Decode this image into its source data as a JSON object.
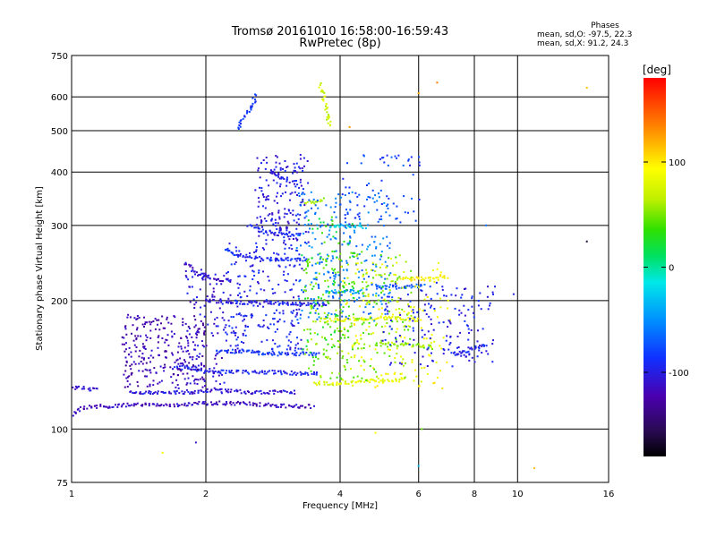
{
  "title": {
    "line1": "Tromsø 20161010 16:58:00-16:59:43",
    "line2": "RwPretec (8p)"
  },
  "phases": {
    "heading": "Phases",
    "o_line": "mean, sd,O: -97.5, 22.3",
    "x_line": "mean, sd,X:  91.2, 24.3"
  },
  "colorbar": {
    "unit": "[deg]",
    "range": [
      -180,
      180
    ],
    "ticks": [
      {
        "value": 100,
        "label": "100"
      },
      {
        "value": 0,
        "label": "0"
      },
      {
        "value": -100,
        "label": "-100"
      }
    ]
  },
  "chart_data": {
    "type": "scatter",
    "title": "Tromsø 20161010 16:58:00-16:59:43",
    "subtitle": "RwPretec (8p)",
    "xlabel": "Frequency [MHz]",
    "ylabel": "Stationary phase Virtual Height [km]",
    "xscale": "log",
    "yscale": "log",
    "xlim": [
      1,
      16
    ],
    "ylim": [
      75,
      750
    ],
    "xticks": [
      1,
      2,
      4,
      6,
      8,
      10,
      16
    ],
    "yticks": [
      75,
      100,
      200,
      300,
      400,
      500,
      600,
      750
    ],
    "grid": true,
    "color_by": "phase [deg]",
    "traces": [
      {
        "phase": -115,
        "spread": 2,
        "x": [
          1.0,
          1.05,
          1.1,
          1.2,
          1.4,
          1.7,
          2.0,
          2.3,
          2.7,
          3.1,
          3.5
        ],
        "y": [
          108,
          112,
          113,
          113,
          114,
          114,
          115,
          115,
          114,
          113,
          113
        ]
      },
      {
        "phase": -110,
        "spread": 2,
        "x": [
          1.0,
          1.05,
          1.1,
          1.15
        ],
        "y": [
          125,
          125,
          124,
          124
        ]
      },
      {
        "phase": -105,
        "spread": 2,
        "x": [
          1.35,
          1.6,
          1.9,
          2.2,
          2.5,
          2.9,
          3.2
        ],
        "y": [
          122,
          122,
          122,
          123,
          122,
          122,
          122
        ]
      },
      {
        "phase": -95,
        "spread": 2,
        "x": [
          1.7,
          1.9,
          2.1,
          2.4,
          2.8,
          3.2,
          3.6
        ],
        "y": [
          140,
          138,
          136,
          136,
          136,
          135,
          135
        ]
      },
      {
        "phase": -100,
        "spread": 2,
        "x": [
          2.0,
          2.2,
          2.6,
          3.0,
          3.4,
          3.8
        ],
        "y": [
          200,
          198,
          198,
          197,
          196,
          196
        ]
      },
      {
        "phase": -85,
        "spread": 2,
        "x": [
          2.1,
          2.4,
          2.8,
          3.2,
          3.6
        ],
        "y": [
          152,
          152,
          150,
          150,
          150
        ]
      },
      {
        "phase": -90,
        "spread": 2,
        "x": [
          2.2,
          2.4,
          2.7,
          3.0,
          3.4
        ],
        "y": [
          262,
          255,
          250,
          250,
          250
        ]
      },
      {
        "phase": -95,
        "spread": 2,
        "x": [
          2.5,
          2.7,
          3.0,
          3.3
        ],
        "y": [
          300,
          290,
          285,
          285
        ]
      },
      {
        "phase": -100,
        "spread": 2,
        "x": [
          2.8,
          3.0,
          3.2
        ],
        "y": [
          400,
          385,
          375
        ]
      },
      {
        "phase": -85,
        "spread": 2,
        "x": [
          2.35,
          2.45,
          2.55,
          2.6
        ],
        "y": [
          505,
          540,
          580,
          610
        ]
      },
      {
        "phase": 80,
        "spread": 2,
        "x": [
          3.5,
          3.9,
          4.4,
          5.0,
          5.6
        ],
        "y": [
          128,
          128,
          129,
          130,
          131
        ]
      },
      {
        "phase": 85,
        "spread": 2,
        "x": [
          3.6,
          4.0,
          4.6,
          5.2,
          6.0
        ],
        "y": [
          180,
          180,
          182,
          182,
          180
        ]
      },
      {
        "phase": 95,
        "spread": 2,
        "x": [
          5.5,
          6.0,
          6.5,
          7.0
        ],
        "y": [
          225,
          225,
          225,
          228
        ]
      },
      {
        "phase": -40,
        "spread": 2,
        "x": [
          3.7,
          4.1,
          4.5
        ],
        "y": [
          210,
          210,
          210
        ]
      },
      {
        "phase": 70,
        "spread": 2,
        "x": [
          3.6,
          3.7,
          3.8
        ],
        "y": [
          640,
          580,
          510
        ]
      },
      {
        "phase": -20,
        "spread": 2,
        "x": [
          3.8,
          4.2,
          4.6
        ],
        "y": [
          298,
          298,
          298
        ]
      },
      {
        "phase": 60,
        "spread": 2,
        "x": [
          3.3,
          3.5,
          3.7
        ],
        "y": [
          340,
          340,
          345
        ]
      },
      {
        "phase": 50,
        "spread": 2,
        "x": [
          4.8,
          5.4,
          6.0,
          6.5
        ],
        "y": [
          158,
          158,
          157,
          155
        ]
      },
      {
        "phase": -110,
        "spread": 2,
        "x": [
          1.8,
          1.9,
          2.1,
          2.3
        ],
        "y": [
          245,
          232,
          225,
          222
        ]
      },
      {
        "phase": -70,
        "spread": 2,
        "x": [
          4.8,
          5.5,
          6.2
        ],
        "y": [
          215,
          215,
          217
        ]
      },
      {
        "phase": -95,
        "spread": 2,
        "x": [
          7.2,
          7.6,
          8.0,
          8.5
        ],
        "y": [
          150,
          152,
          155,
          158
        ]
      }
    ],
    "clusters": [
      {
        "phase": -120,
        "spread": 2,
        "xr": [
          1.3,
          2.0
        ],
        "yr": [
          125,
          185
        ],
        "n": 260
      },
      {
        "phase": -105,
        "spread": 2,
        "xr": [
          1.8,
          2.2
        ],
        "yr": [
          120,
          235
        ],
        "n": 110
      },
      {
        "phase": -95,
        "spread": 2,
        "xr": [
          2.2,
          3.3
        ],
        "yr": [
          150,
          270
        ],
        "n": 240
      },
      {
        "phase": -100,
        "spread": 2,
        "xr": [
          2.6,
          3.4
        ],
        "yr": [
          270,
          440
        ],
        "n": 180
      },
      {
        "phase": -60,
        "spread": 2,
        "xr": [
          3.2,
          5.2
        ],
        "yr": [
          180,
          360
        ],
        "n": 260
      },
      {
        "phase": 50,
        "spread": 2,
        "xr": [
          3.3,
          5.8
        ],
        "yr": [
          130,
          260
        ],
        "n": 260
      },
      {
        "phase": 90,
        "spread": 2,
        "xr": [
          4.0,
          7.0
        ],
        "yr": [
          125,
          250
        ],
        "n": 160
      },
      {
        "phase": -95,
        "spread": 2,
        "xr": [
          5.0,
          9.0
        ],
        "yr": [
          140,
          220
        ],
        "n": 170
      },
      {
        "phase": 30,
        "spread": 2,
        "xr": [
          3.3,
          4.3
        ],
        "yr": [
          150,
          320
        ],
        "n": 90
      },
      {
        "phase": -80,
        "spread": 2,
        "xr": [
          4.0,
          6.0
        ],
        "yr": [
          300,
          440
        ],
        "n": 70
      }
    ],
    "points": [
      {
        "x": 1.9,
        "y": 93,
        "phase": -110
      },
      {
        "x": 1.6,
        "y": 88,
        "phase": 100
      },
      {
        "x": 6.0,
        "y": 82,
        "phase": -20
      },
      {
        "x": 10.9,
        "y": 81,
        "phase": 100
      },
      {
        "x": 6.0,
        "y": 612,
        "phase": 120
      },
      {
        "x": 6.6,
        "y": 648,
        "phase": 140
      },
      {
        "x": 14.3,
        "y": 630,
        "phase": 100
      },
      {
        "x": 14.3,
        "y": 275,
        "phase": -160
      },
      {
        "x": 9.8,
        "y": 207,
        "phase": -95
      },
      {
        "x": 8.5,
        "y": 300,
        "phase": -50
      },
      {
        "x": 4.2,
        "y": 510,
        "phase": 120
      },
      {
        "x": 4.8,
        "y": 98,
        "phase": 100
      },
      {
        "x": 6.1,
        "y": 100,
        "phase": 60
      }
    ]
  }
}
